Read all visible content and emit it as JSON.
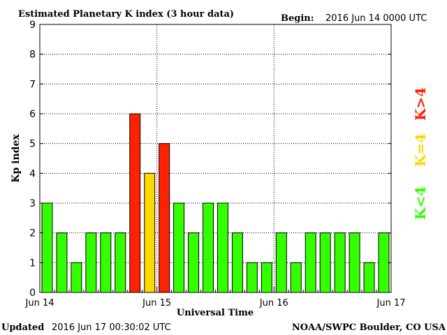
{
  "header": {
    "title": "Estimated Planetary K index (3 hour data)",
    "begin_label": "Begin:",
    "begin_value": "2016 Jun 14 0000 UTC"
  },
  "footer": {
    "updated_label": "Updated",
    "updated_value": "2016 Jun 17 00:30:02 UTC",
    "source": "NOAA/SWPC Boulder, CO USA"
  },
  "legend": {
    "low": "K<4",
    "mid": "K=4",
    "high": "K>4"
  },
  "chart_data": {
    "type": "bar",
    "title": "Estimated Planetary K index (3 hour data)",
    "xlabel": "Universal Time",
    "ylabel": "Kp index",
    "ylim": [
      0,
      9
    ],
    "yticks": [
      "0",
      "1",
      "2",
      "3",
      "4",
      "5",
      "6",
      "7",
      "8",
      "9"
    ],
    "xticks": [
      "Jun 14",
      "Jun 15",
      "Jun 16",
      "Jun 17"
    ],
    "grid": true,
    "legend_position": "right",
    "interval_hours": 3,
    "values": [
      3,
      2,
      1,
      2,
      2,
      2,
      6,
      4,
      5,
      3,
      2,
      3,
      3,
      2,
      1,
      1,
      2,
      1,
      2,
      2,
      2,
      2,
      1,
      2
    ],
    "colors": {
      "below_4": "#33ff00",
      "equal_4": "#ffd700",
      "above_4": "#ff2200"
    }
  }
}
